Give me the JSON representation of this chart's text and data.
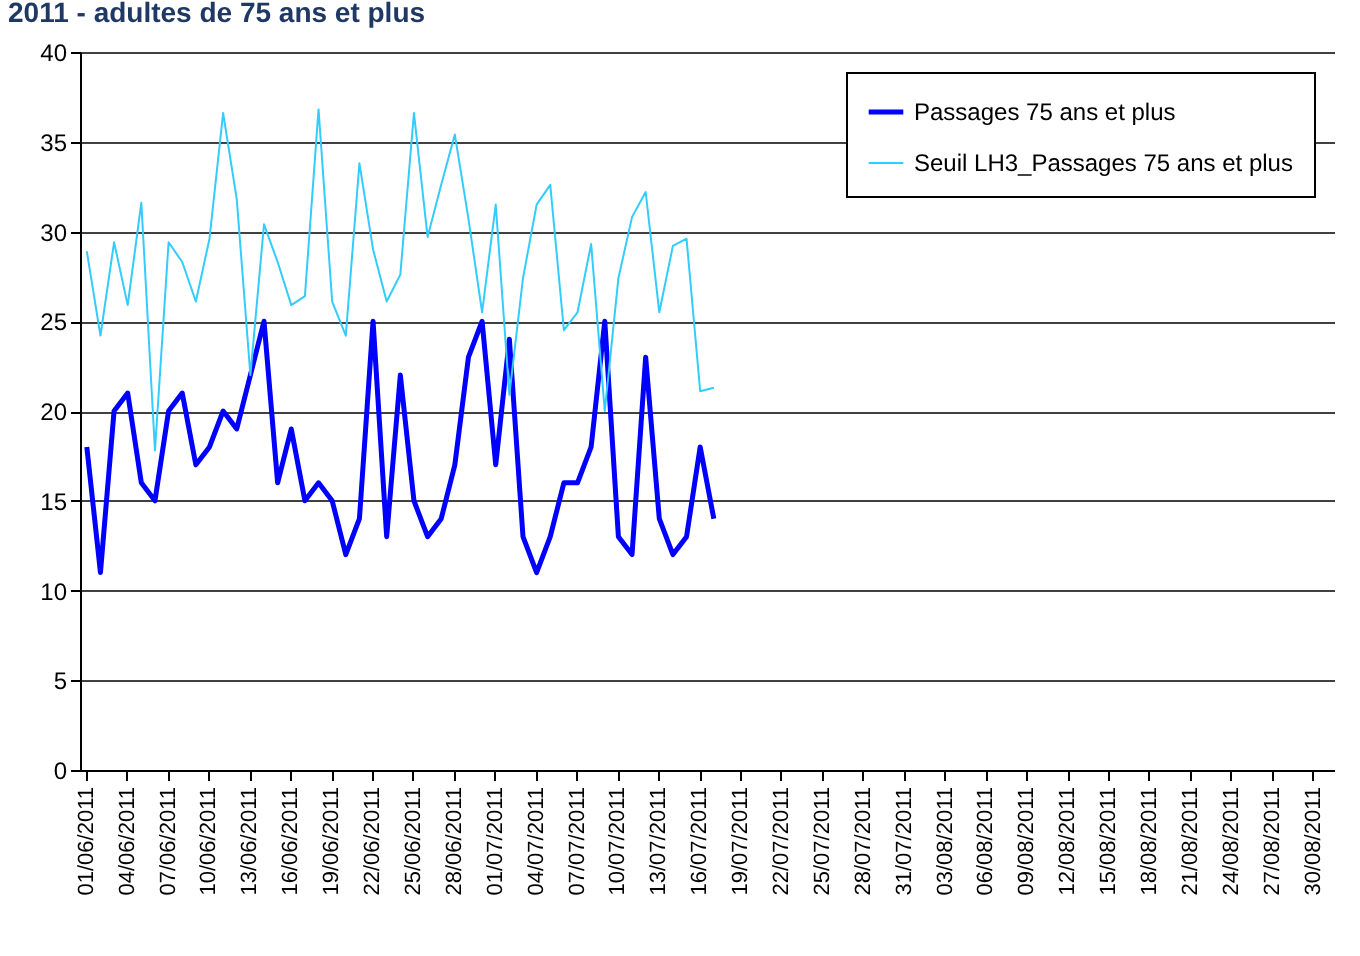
{
  "chart_data": {
    "type": "line",
    "title": "2011 - adultes de 75 ans et plus",
    "categories": [
      "01/06/2011",
      null,
      null,
      "04/06/2011",
      null,
      null,
      "07/06/2011",
      null,
      null,
      "10/06/2011",
      null,
      null,
      "13/06/2011",
      null,
      null,
      "16/06/2011",
      null,
      null,
      "19/06/2011",
      null,
      null,
      "22/06/2011",
      null,
      null,
      "25/06/2011",
      null,
      null,
      "28/06/2011",
      null,
      null,
      "01/07/2011",
      null,
      null,
      "04/07/2011",
      null,
      null,
      "07/07/2011",
      null,
      null,
      "10/07/2011",
      null,
      null,
      "13/07/2011",
      null,
      null,
      "16/07/2011",
      null,
      null,
      "19/07/2011",
      null,
      null,
      "22/07/2011",
      null,
      null,
      "25/07/2011",
      null,
      null,
      "28/07/2011",
      null,
      null,
      "31/07/2011",
      null,
      null,
      "03/08/2011",
      null,
      null,
      "06/08/2011",
      null,
      null,
      "09/08/2011",
      null,
      null,
      "12/08/2011",
      null,
      null,
      "15/08/2011",
      null,
      null,
      "18/08/2011",
      null,
      null,
      "21/08/2011",
      null,
      null,
      "24/08/2011",
      null,
      null,
      "27/08/2011",
      null,
      null,
      "30/08/2011",
      null
    ],
    "series": [
      {
        "name": "Passages 75 ans et plus",
        "color": "#0000ff",
        "values": [
          18,
          11,
          20,
          21,
          16,
          15,
          20,
          21,
          17,
          18,
          20,
          19,
          22,
          25,
          16,
          19,
          15,
          16,
          15,
          12,
          14,
          25,
          13,
          22,
          15,
          13,
          14,
          17,
          23,
          25,
          17,
          24,
          13,
          11,
          13,
          16,
          16,
          18,
          25,
          13,
          12,
          23,
          14,
          12,
          13,
          18,
          14,
          null,
          null,
          null,
          null,
          null,
          null,
          null,
          null,
          null,
          null,
          null,
          null,
          null,
          null,
          null,
          null,
          null,
          null,
          null,
          null,
          null,
          null,
          null,
          null,
          null,
          null,
          null,
          null,
          null,
          null,
          null,
          null,
          null,
          null,
          null,
          null,
          null,
          null,
          null,
          null,
          null,
          null,
          null,
          null,
          null
        ]
      },
      {
        "name": "Seuil LH3_Passages 75 ans et plus",
        "color": "#33ccff",
        "values": [
          28.9,
          24.2,
          29.4,
          25.9,
          31.6,
          17.8,
          29.4,
          28.3,
          26.1,
          29.6,
          36.6,
          31.8,
          22.0,
          30.4,
          28.3,
          25.9,
          26.4,
          36.8,
          26.1,
          24.2,
          33.8,
          29.0,
          26.1,
          27.6,
          36.6,
          29.7,
          32.6,
          35.4,
          30.7,
          25.5,
          31.5,
          20.9,
          27.4,
          31.5,
          32.6,
          24.5,
          25.5,
          29.3,
          20.0,
          27.4,
          30.8,
          32.2,
          25.5,
          29.2,
          29.6,
          21.1,
          21.3,
          null,
          null,
          null,
          null,
          null,
          null,
          null,
          null,
          null,
          null,
          null,
          null,
          null,
          null,
          null,
          null,
          null,
          null,
          null,
          null,
          null,
          null,
          null,
          null,
          null,
          null,
          null,
          null,
          null,
          null,
          null,
          null,
          null,
          null,
          null,
          null,
          null,
          null,
          null,
          null,
          null,
          null,
          null,
          null,
          null
        ]
      }
    ],
    "ylim": [
      0,
      40
    ],
    "yticks": [
      0,
      5,
      10,
      15,
      20,
      25,
      30,
      35,
      40
    ],
    "grid": "y",
    "legend": "top right",
    "marker": "none",
    "line_style": "solid"
  }
}
